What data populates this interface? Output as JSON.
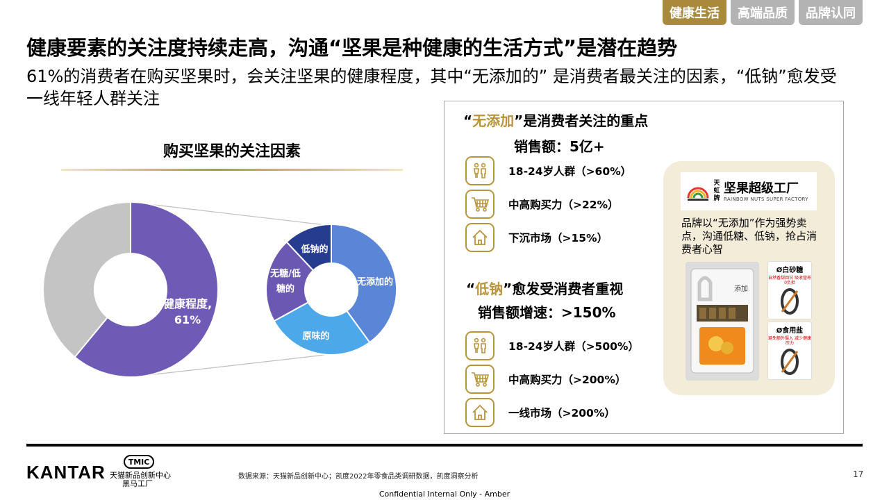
{
  "tabs": [
    {
      "label": "健康生活",
      "active": true
    },
    {
      "label": "高端品质",
      "active": false
    },
    {
      "label": "品牌认同",
      "active": false
    }
  ],
  "title": "健康要素的关注度持续走高，沟通“坚果是种健康的生活方式”是潜在趋势",
  "subtitle": "61%的消费者在购买坚果时，会关注坚果的健康程度，其中“无添加的” 是消费者最关注的因素，“低钠”愈发受一线年轻人群关注",
  "chart_title": "购买坚果的关注因素",
  "chart_data": [
    {
      "type": "pie",
      "donut": true,
      "slices": [
        {
          "label": "健康程度,",
          "value_label": "61%",
          "value": 61,
          "color": "#6f5bb6"
        },
        {
          "label": "",
          "value": 39,
          "color": "#c4c4c4"
        }
      ]
    },
    {
      "type": "pie",
      "donut": true,
      "slices": [
        {
          "label": "无添加的",
          "value": 40,
          "color": "#5b85d6"
        },
        {
          "label": "原味的",
          "value": 27,
          "color": "#4da8ea"
        },
        {
          "label": "无糖/低糖的",
          "value": 21,
          "color": "#6a58b2"
        },
        {
          "label": "低钠的",
          "value": 12,
          "color": "#263c8e"
        }
      ]
    }
  ],
  "panel": {
    "section1": {
      "quote_open": "“",
      "highlight": "无添加",
      "rest": "”是消费者关注的重点",
      "sub": "销售额：5亿+",
      "stats": [
        {
          "icon": "people-icon",
          "text": "18-24岁人群（>60%）"
        },
        {
          "icon": "shopping-cart-icon",
          "text": "中高购买力（>22%）"
        },
        {
          "icon": "house-icon",
          "text": "下沉市场（>15%）"
        }
      ]
    },
    "section2": {
      "quote_open": "“",
      "highlight": "低钠",
      "rest": "”愈发受消费者重视",
      "sub": "销售额增速：>150%",
      "stats": [
        {
          "icon": "people-icon",
          "text": "18-24岁人群（>500%）"
        },
        {
          "icon": "shopping-cart-icon",
          "text": "中高购买力（>200%）"
        },
        {
          "icon": "house-icon",
          "text": "一线市场（>200%）"
        }
      ]
    },
    "brand": {
      "logo_small": "天虹牌",
      "logo_name": "坚果超级工厂",
      "logo_en": "RAINBOW NUTS SUPER FACTORY",
      "desc": "品牌以“无添加”作为强势卖点，沟通低糖、低钠，抢占消费者心智",
      "product_label": "添加",
      "product_zero": "0",
      "card1": {
        "title": "Ø白砂糖",
        "desc": "自然香甜回甘 吸收营养0负担"
      },
      "card2": {
        "title": "Ø食用盐",
        "desc": "避免额外摄入 减少健康压力"
      }
    }
  },
  "footer": {
    "kantar": "KANTAR",
    "tmic": "TMIC",
    "tmic_name_1": "天猫新品创新中心",
    "tmic_name_2": "黑马工厂",
    "source": "数据来源：天猫新品创新中心；凯度2022年零食品类调研数据，凯度洞察分析",
    "page_number": "17",
    "confidential": "Confidential Internal Only - Amber"
  },
  "colors": {
    "gold": "#b8953a",
    "purple": "#6f5bb6",
    "grey": "#c4c4c4"
  }
}
